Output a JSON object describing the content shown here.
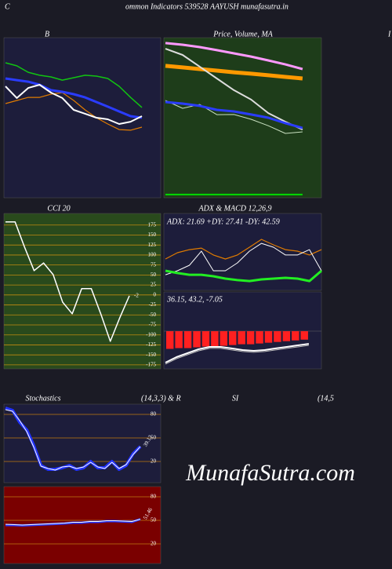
{
  "header": {
    "left": "C",
    "title": "ommon  Indicators 539528  AAYUSH munafasutra.in",
    "right": "I"
  },
  "watermark": "MunafaSutra.com",
  "chart_data": [
    {
      "type": "line",
      "title": "B",
      "background": "#1d1d3b",
      "ylim": [
        0,
        100
      ],
      "series": [
        {
          "color": "#11c411",
          "width": 1.5,
          "values": [
            84.3,
            82.4,
            78.4,
            76.5,
            75.5,
            73.5,
            75,
            76.5,
            76,
            74.5,
            69.6,
            62.7,
            56.4
          ]
        },
        {
          "color": "#e07b00",
          "width": 1.2,
          "values": [
            58.8,
            60.8,
            62.7,
            62.7,
            64.7,
            65.7,
            60.8,
            54.9,
            50,
            46.1,
            42.6,
            42.2,
            44.1
          ]
        },
        {
          "color": "#2a3cff",
          "width": 3,
          "values": [
            74.5,
            73.5,
            72.5,
            70.6,
            67.2,
            66.2,
            64.7,
            62.7,
            59.8,
            56.9,
            53.9,
            51,
            50
          ]
        },
        {
          "color": "#ffffff",
          "width": 2,
          "values": [
            69.6,
            62.3,
            68.6,
            70.6,
            65.7,
            62.3,
            54.9,
            52.5,
            50,
            49,
            46.1,
            47.5,
            51
          ]
        }
      ]
    },
    {
      "type": "line",
      "title": "Price, Volume, MA",
      "background": "#1e3d1a",
      "ylim": [
        0,
        100
      ],
      "series": [
        {
          "color": "#ff99ff",
          "width": 3,
          "values": [
            96.6,
            95.6,
            94.1,
            92.2,
            90.2,
            88.2,
            85.8,
            83.3,
            80.4
          ]
        },
        {
          "color": "#ff9900",
          "width": 5,
          "values": [
            82.4,
            81.4,
            80.4,
            79.4,
            78.4,
            77.5,
            76.5,
            75.5,
            74.5
          ]
        },
        {
          "color": "#dddddd",
          "width": 2,
          "values": [
            93.1,
            89.2,
            81.9,
            74.5,
            67.2,
            61.3,
            52.9,
            47.5,
            42.6
          ]
        },
        {
          "color": "#c8e0c0",
          "width": 1,
          "values": [
            60.8,
            55.9,
            58.3,
            51.9,
            52,
            49,
            45,
            40.2,
            41.2
          ]
        },
        {
          "color": "#2a3cff",
          "width": 3,
          "values": [
            59.8,
            58.8,
            57.4,
            54.9,
            53.9,
            52,
            50,
            46.6,
            43.6
          ]
        },
        {
          "color": "#00dd00",
          "width": 2,
          "values": [
            2,
            2,
            2,
            2,
            2,
            2,
            2,
            2,
            2
          ]
        }
      ]
    },
    {
      "type": "line",
      "title": "CCI 20",
      "background": "#294a1c",
      "grid_color": "#c08a10",
      "ylim": [
        -185,
        204
      ],
      "yticks": [
        175,
        150,
        125,
        100,
        75,
        50,
        25,
        0,
        -25,
        -50,
        -75,
        -100,
        -125,
        -150,
        -175
      ],
      "series": [
        {
          "color": "#ffffff",
          "width": 1.5,
          "label_last": true,
          "values": [
            183,
            183,
            120,
            61,
            80,
            51,
            -18,
            -47,
            16,
            16,
            -47,
            -116,
            -57,
            -2
          ]
        }
      ]
    },
    {
      "type": "line",
      "title": "ADX  & MACD 12,26,9",
      "annotation": "ADX: 21.69 +DY: 27.41 -DY: 42.59",
      "background": "#1d1d3b",
      "ylim": [
        0,
        60
      ],
      "series": [
        {
          "color": "#e07b00",
          "width": 1.2,
          "values": [
            24.5,
            29.4,
            31.8,
            33,
            27.6,
            24.5,
            27.6,
            33.7,
            39.8,
            35.5,
            31.8,
            30.6,
            27.6,
            31.8
          ]
        },
        {
          "color": "#ffffff",
          "width": 1,
          "values": [
            12.2,
            15.3,
            19.6,
            30.6,
            15.3,
            15.3,
            21.4,
            30.6,
            36.7,
            33.7,
            27.6,
            27.6,
            31.8,
            15.3
          ]
        },
        {
          "color": "#22ee22",
          "width": 3,
          "values": [
            15.3,
            13.5,
            12.2,
            12.2,
            11,
            9.2,
            8,
            7.3,
            8.6,
            9.2,
            9.8,
            9.2,
            7.3,
            15.3
          ]
        }
      ]
    },
    {
      "type": "macd",
      "annotation": "36.15, 43.2, -7.05",
      "background": "#1d1d3b",
      "ylim": [
        -49,
        51
      ],
      "histogram": {
        "color": "#ff2020",
        "values": [
          -23,
          -22,
          -22,
          -21,
          -20,
          -20,
          -19,
          -18,
          -17,
          -17,
          -16,
          -15,
          -14,
          -13,
          -12,
          -11
        ]
      },
      "series": [
        {
          "color": "#ffffff",
          "width": 2,
          "values": [
            -40.8,
            -33.7,
            -28.6,
            -23.5,
            -20.4,
            -20.4,
            -22.4,
            -24.5,
            -25.5,
            -24.5,
            -22.4,
            -20.4,
            -18.4,
            -16.4
          ]
        },
        {
          "color": "#bbbbbb",
          "width": 1,
          "values": [
            -42.8,
            -35.7,
            -30.6,
            -25.5,
            -22.4,
            -22.4,
            -24.4,
            -26.5,
            -27.5,
            -26.5,
            -24.4,
            -22.4,
            -20.4,
            -18.4
          ]
        }
      ]
    },
    {
      "type": "line",
      "title": "Stochastics",
      "params": "(14,3,3) & R",
      "background": "#1d1d3b",
      "grid_color": "#c07a10",
      "ylim": [
        -7,
        93
      ],
      "yticks": [
        80,
        50,
        20
      ],
      "series": [
        {
          "color": "#2233ff",
          "width": 4,
          "values": [
            88,
            85,
            70,
            60,
            40,
            15,
            10,
            10,
            12,
            15,
            10,
            12,
            20,
            12,
            12,
            20,
            10,
            15,
            30,
            39.12
          ]
        },
        {
          "color": "#ffffff",
          "width": 1,
          "label_last": true,
          "values": [
            86,
            84,
            72,
            58,
            38,
            14,
            11,
            9,
            13,
            14,
            11,
            13,
            19,
            13,
            11,
            19,
            11,
            16,
            29,
            39.12
          ]
        }
      ]
    },
    {
      "type": "line",
      "title": "SI",
      "params": "(14,5",
      "background": "#7a0000",
      "grid_color": "#c07a10",
      "ylim": [
        -5,
        93
      ],
      "yticks": [
        80,
        50,
        20
      ],
      "series": [
        {
          "color": "#2233ff",
          "width": 3,
          "values": [
            44,
            44,
            43.5,
            44,
            44.5,
            45,
            45.5,
            46,
            47,
            47,
            48,
            48,
            49,
            49,
            48.5,
            48,
            51.46
          ]
        },
        {
          "color": "#ffffff",
          "width": 1,
          "label_last": true,
          "values": [
            45,
            44.5,
            44,
            44.5,
            45,
            45.5,
            46,
            46.5,
            47.5,
            47.5,
            48.5,
            48.5,
            49.5,
            49.5,
            49,
            48.5,
            51.46
          ]
        }
      ]
    }
  ]
}
